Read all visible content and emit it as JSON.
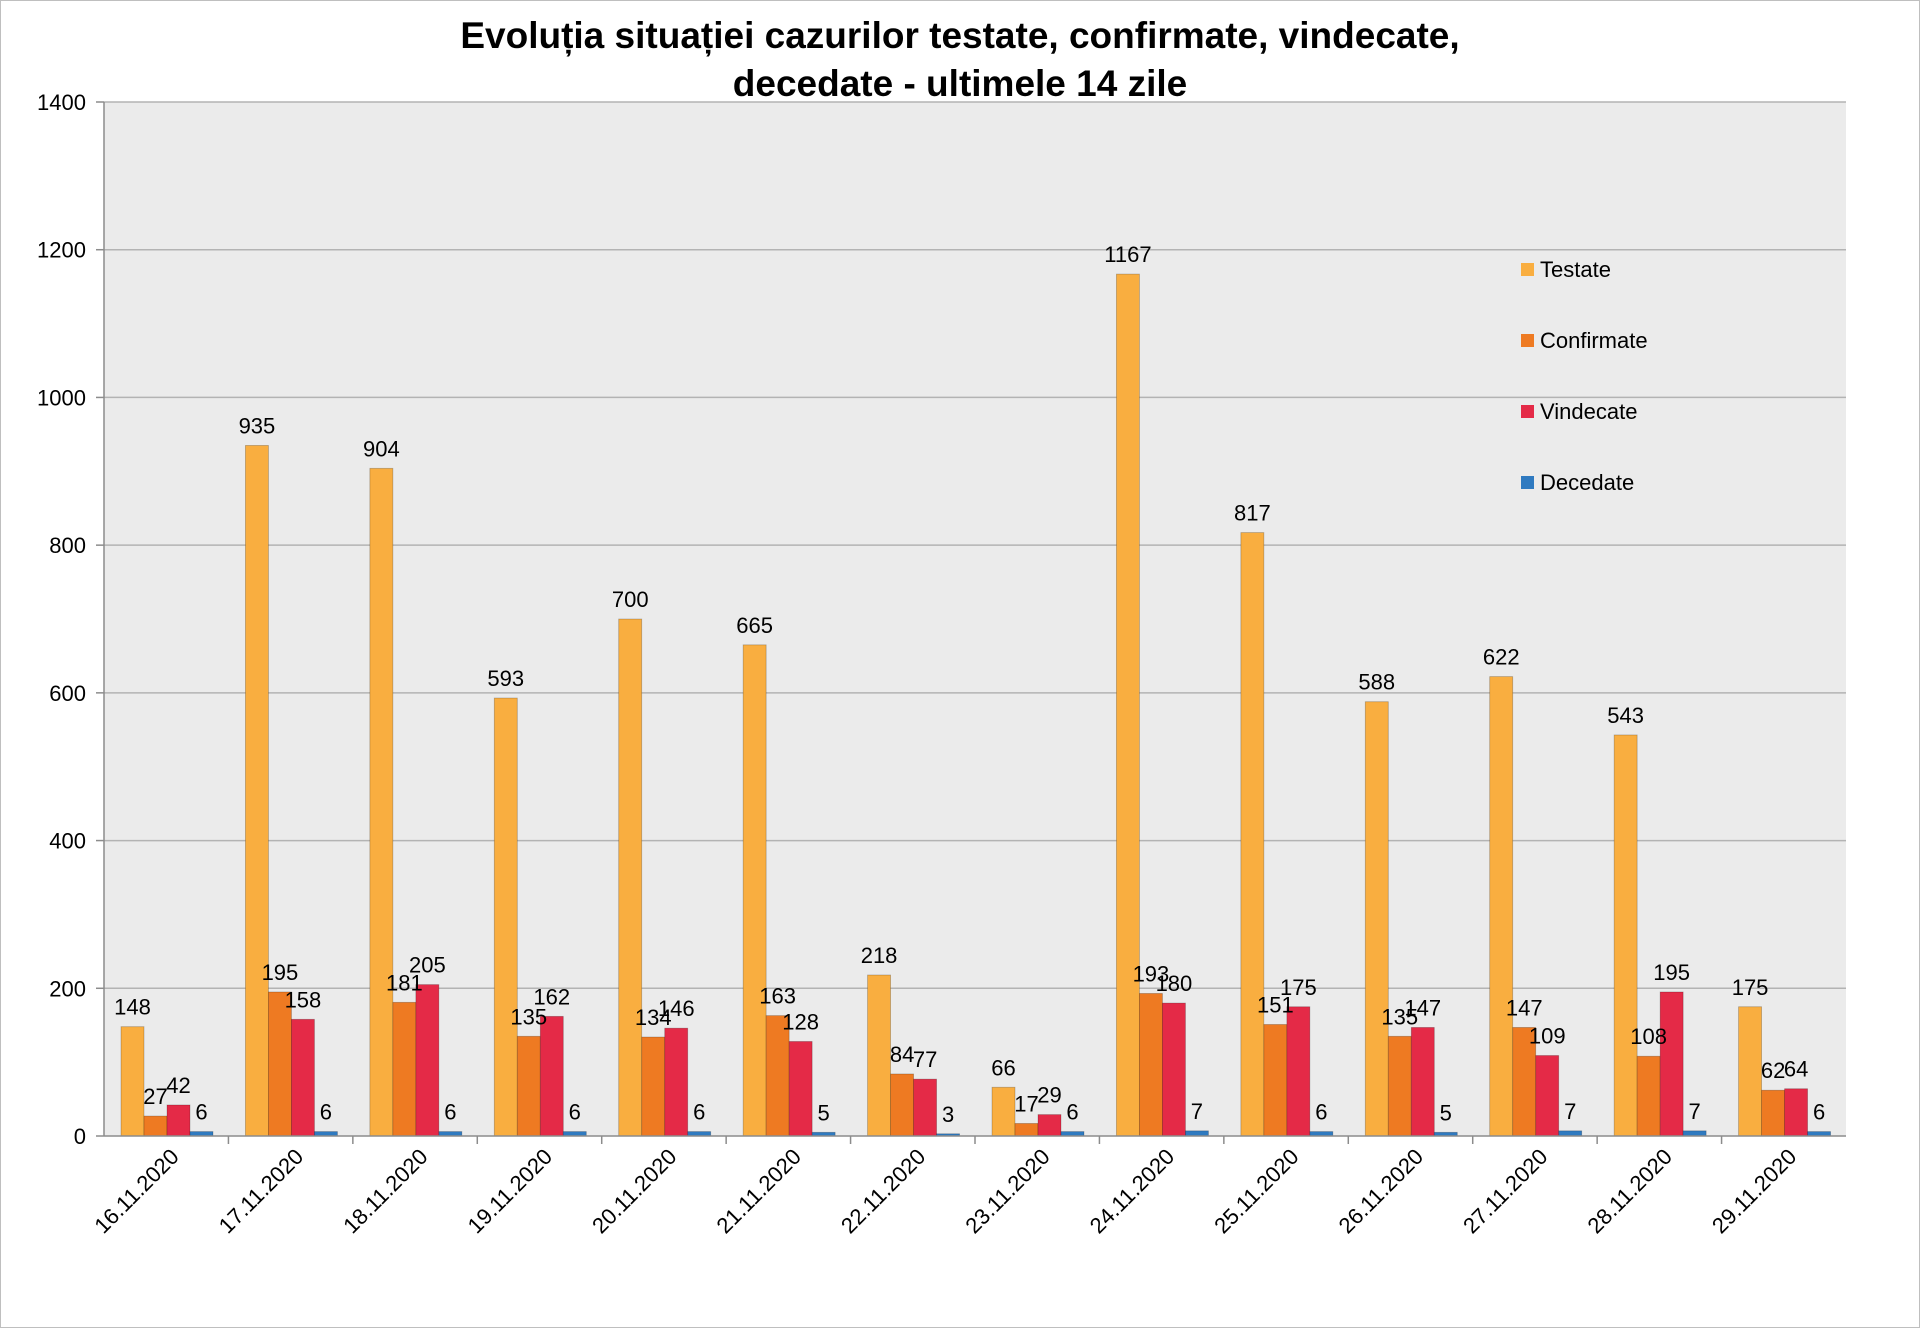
{
  "chart_data": {
    "type": "bar",
    "title_lines": [
      "Evoluția situației cazurilor testate, confirmate, vindecate,",
      "decedate -  ultimele 14 zile"
    ],
    "xlabel": "",
    "ylabel": "",
    "ylim": [
      0,
      1400
    ],
    "yticks": [
      0,
      200,
      400,
      600,
      800,
      1000,
      1200,
      1400
    ],
    "grid": true,
    "legend_position": "top-right",
    "categories": [
      "16.11.2020",
      "17.11.2020",
      "18.11.2020",
      "19.11.2020",
      "20.11.2020",
      "21.11.2020",
      "22.11.2020",
      "23.11.2020",
      "24.11.2020",
      "25.11.2020",
      "26.11.2020",
      "27.11.2020",
      "28.11.2020",
      "29.11.2020"
    ],
    "series": [
      {
        "name": "Testate",
        "color": "#f9ae40",
        "values": [
          148,
          935,
          904,
          593,
          700,
          665,
          218,
          66,
          1167,
          817,
          588,
          622,
          543,
          175
        ]
      },
      {
        "name": "Confirmate",
        "color": "#ee7a22",
        "values": [
          27,
          195,
          181,
          135,
          134,
          163,
          84,
          17,
          193,
          151,
          135,
          147,
          108,
          62
        ]
      },
      {
        "name": "Vindecate",
        "color": "#e42a47",
        "values": [
          42,
          158,
          205,
          162,
          146,
          128,
          77,
          29,
          180,
          175,
          147,
          109,
          195,
          64
        ]
      },
      {
        "name": "Decedate",
        "color": "#2f7ac0",
        "values": [
          6,
          6,
          6,
          6,
          6,
          5,
          3,
          6,
          7,
          6,
          5,
          7,
          7,
          6
        ]
      }
    ]
  }
}
